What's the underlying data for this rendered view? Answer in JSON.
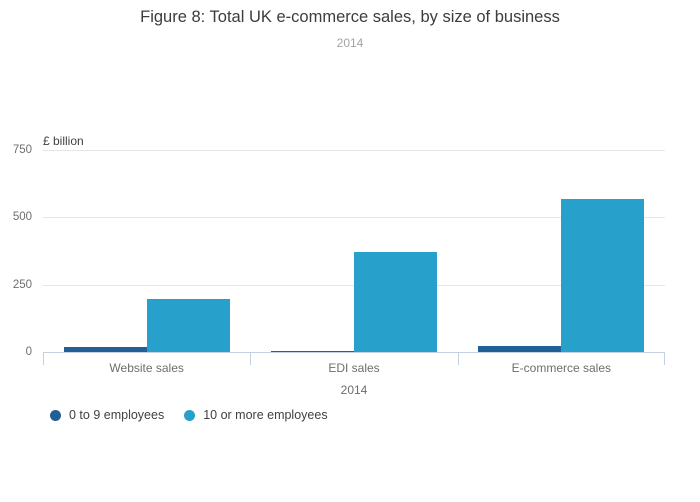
{
  "title": "Figure 8: Total UK e-commerce sales, by size of business",
  "subtitle": "2014",
  "chart_data": {
    "type": "bar",
    "title": "Figure 8: Total UK e-commerce sales, by size of business",
    "subtitle": "2014",
    "categories": [
      "Website sales",
      "EDI sales",
      "E-commerce sales"
    ],
    "series": [
      {
        "name": "0 to 9 employees",
        "color": "#206095",
        "values": [
          20,
          2,
          22
        ]
      },
      {
        "name": "10 or more employees",
        "color": "#27a0cc",
        "values": [
          197,
          371,
          568
        ]
      }
    ],
    "xlabel": "2014",
    "ylabel": "£ billion",
    "ylim": [
      0,
      750
    ],
    "yticks": [
      0,
      250,
      500,
      750
    ],
    "grid": true,
    "legend_position": "bottom-left"
  },
  "colors": {
    "series_dark_blue": "#206095",
    "series_light_blue": "#27a0cc",
    "gridline": "#e6e6e6",
    "axis_line": "#c3d1e1",
    "title_text": "#3c3c3c",
    "tick_text": "#6e6e6e"
  }
}
